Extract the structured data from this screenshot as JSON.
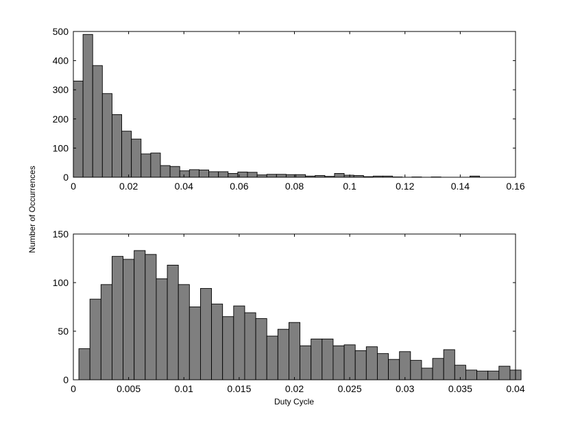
{
  "figure": {
    "ylabel": "Number of Occurrences",
    "xlabel": "Duty Cycle"
  },
  "chart_data": [
    {
      "type": "bar",
      "subtype": "histogram",
      "bar_color": "#7f7f7f",
      "edge_color": "#000000",
      "xlim": [
        0,
        0.16
      ],
      "ylim": [
        0,
        500
      ],
      "xticks": [
        "0",
        "0.02",
        "0.04",
        "0.06",
        "0.08",
        "0.1",
        "0.12",
        "0.14",
        "0.16"
      ],
      "yticks": [
        "0",
        "100",
        "200",
        "300",
        "400",
        "500"
      ],
      "xtick_values": [
        0,
        0.02,
        0.04,
        0.06,
        0.08,
        0.1,
        0.12,
        0.14,
        0.16
      ],
      "ytick_values": [
        0,
        100,
        200,
        300,
        400,
        500
      ],
      "bin_start": 0.0,
      "bin_width": 0.0035,
      "values": [
        330,
        490,
        383,
        287,
        215,
        158,
        131,
        80,
        83,
        40,
        37,
        22,
        26,
        25,
        19,
        19,
        13,
        18,
        17,
        8,
        10,
        10,
        9,
        9,
        4,
        6,
        3,
        13,
        7,
        6,
        2,
        4,
        4,
        1,
        0,
        1,
        0,
        1,
        0,
        0,
        0,
        4
      ]
    },
    {
      "type": "bar",
      "subtype": "histogram",
      "bar_color": "#7f7f7f",
      "edge_color": "#000000",
      "xlim": [
        0,
        0.04
      ],
      "ylim": [
        0,
        150
      ],
      "xticks": [
        "0",
        "0.005",
        "0.01",
        "0.015",
        "0.02",
        "0.025",
        "0.03",
        "0.035",
        "0.04"
      ],
      "yticks": [
        "0",
        "50",
        "100",
        "150"
      ],
      "xtick_values": [
        0,
        0.005,
        0.01,
        0.015,
        0.02,
        0.025,
        0.03,
        0.035,
        0.04
      ],
      "ytick_values": [
        0,
        50,
        100,
        150
      ],
      "bin_start": 0.0005,
      "bin_width": 0.001,
      "values": [
        32,
        83,
        98,
        127,
        124,
        133,
        129,
        104,
        118,
        98,
        75,
        94,
        78,
        65,
        76,
        69,
        63,
        45,
        52,
        59,
        35,
        42,
        42,
        35,
        36,
        30,
        34,
        27,
        21,
        29,
        20,
        12,
        22,
        31,
        15,
        10,
        9,
        9,
        14,
        10
      ]
    }
  ]
}
